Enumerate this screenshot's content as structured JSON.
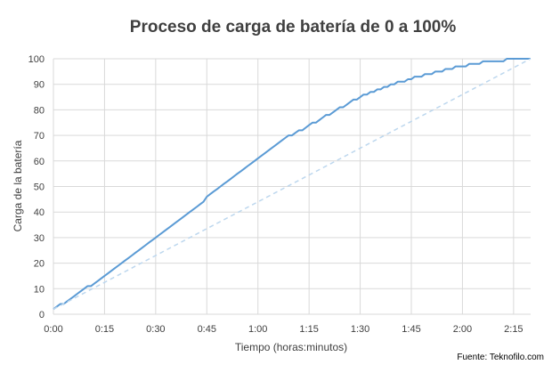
{
  "chart_data": {
    "type": "line",
    "title": "Proceso de carga de batería de 0 a 100%",
    "xlabel": "Tiempo (horas:minutos)",
    "ylabel": "Carga de la batería",
    "source": "Fuente: Teknofilo.com",
    "xlim": [
      0,
      140
    ],
    "ylim": [
      0,
      100
    ],
    "x_tick_values": [
      0,
      15,
      30,
      45,
      60,
      75,
      90,
      105,
      120,
      135
    ],
    "x_tick_labels": [
      "0:00",
      "0:15",
      "0:30",
      "0:45",
      "1:00",
      "1:15",
      "1:30",
      "1:45",
      "2:00",
      "2:15"
    ],
    "y_ticks": [
      0,
      10,
      20,
      30,
      40,
      50,
      60,
      70,
      80,
      90,
      100
    ],
    "grid": true,
    "colors": {
      "charge": "#5b9bd5",
      "reference": "#bdd7ee"
    },
    "series": [
      {
        "style": "solid",
        "x": [
          0,
          1,
          2,
          3,
          4,
          5,
          6,
          7,
          8,
          9,
          10,
          11,
          12,
          13,
          14,
          15,
          16,
          17,
          18,
          19,
          20,
          21,
          22,
          23,
          24,
          25,
          26,
          27,
          28,
          29,
          30,
          31,
          32,
          33,
          34,
          35,
          36,
          37,
          38,
          39,
          40,
          41,
          42,
          43,
          44,
          45,
          46,
          47,
          48,
          49,
          50,
          51,
          52,
          53,
          54,
          55,
          56,
          57,
          58,
          59,
          60,
          61,
          62,
          63,
          64,
          65,
          66,
          67,
          68,
          69,
          70,
          71,
          72,
          73,
          74,
          75,
          76,
          77,
          78,
          79,
          80,
          81,
          82,
          83,
          84,
          85,
          86,
          87,
          88,
          89,
          90,
          91,
          92,
          93,
          94,
          95,
          96,
          97,
          98,
          99,
          100,
          101,
          102,
          103,
          104,
          105,
          106,
          107,
          108,
          109,
          110,
          111,
          112,
          113,
          114,
          115,
          116,
          117,
          118,
          119,
          120,
          121,
          122,
          123,
          124,
          125,
          126,
          127,
          128,
          129,
          130,
          131,
          132,
          133,
          134,
          135,
          136,
          137,
          138,
          139,
          140
        ],
        "y": [
          2,
          3,
          4,
          4,
          5,
          6,
          7,
          8,
          9,
          10,
          11,
          11,
          12,
          13,
          14,
          15,
          16,
          17,
          18,
          19,
          20,
          21,
          22,
          23,
          24,
          25,
          26,
          27,
          28,
          29,
          30,
          31,
          32,
          33,
          34,
          35,
          36,
          37,
          38,
          39,
          40,
          41,
          42,
          43,
          44,
          46,
          47,
          48,
          49,
          50,
          51,
          52,
          53,
          54,
          55,
          56,
          57,
          58,
          59,
          60,
          61,
          62,
          63,
          64,
          65,
          66,
          67,
          68,
          69,
          70,
          70,
          71,
          72,
          72,
          73,
          74,
          75,
          75,
          76,
          77,
          78,
          78,
          79,
          80,
          81,
          81,
          82,
          83,
          84,
          84,
          85,
          86,
          86,
          87,
          87,
          88,
          88,
          89,
          89,
          90,
          90,
          91,
          91,
          91,
          92,
          92,
          93,
          93,
          93,
          94,
          94,
          94,
          95,
          95,
          95,
          96,
          96,
          96,
          97,
          97,
          97,
          97,
          98,
          98,
          98,
          98,
          99,
          99,
          99,
          99,
          99,
          99,
          99,
          100,
          100,
          100,
          100,
          100,
          100,
          100,
          100
        ]
      },
      {
        "style": "dashed",
        "x": [
          0,
          140
        ],
        "y": [
          2,
          100
        ]
      }
    ]
  }
}
